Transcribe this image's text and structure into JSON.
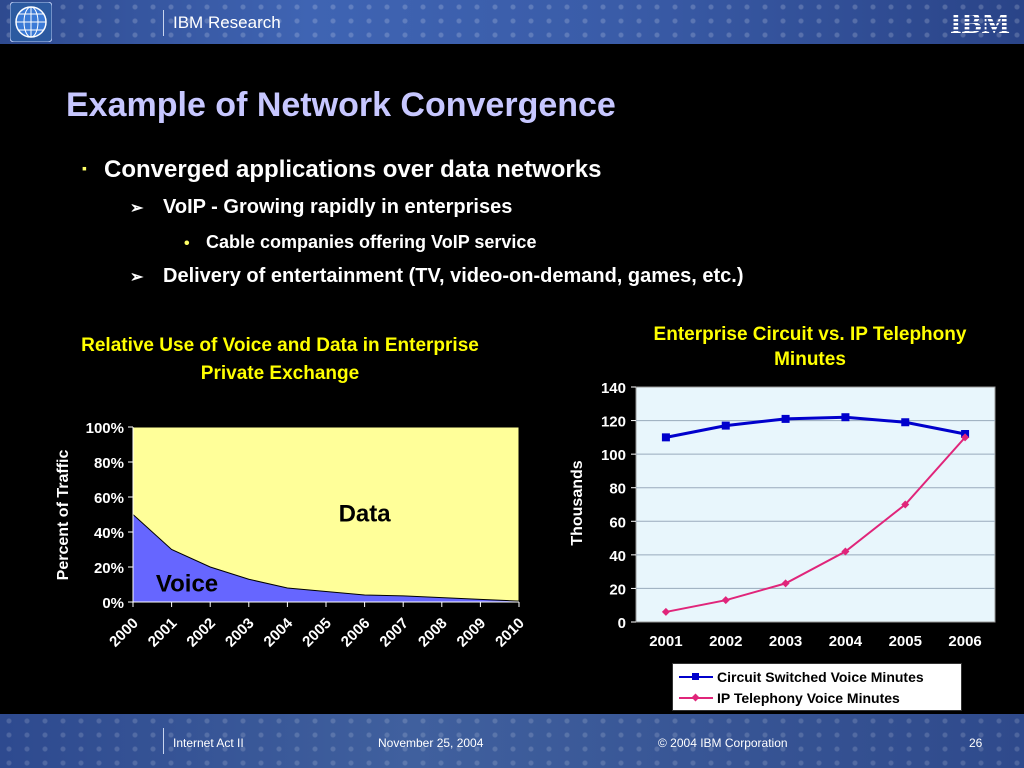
{
  "header": {
    "org": "IBM Research",
    "logo": "IBM"
  },
  "slide": {
    "title": "Example of Network Convergence",
    "bullets": [
      {
        "level": 1,
        "marker": "▪",
        "text": "Converged applications over data networks"
      },
      {
        "level": 2,
        "marker": "➢",
        "text": "VoIP - Growing rapidly in enterprises"
      },
      {
        "level": 3,
        "marker": "•",
        "text": "Cable companies offering VoIP service"
      },
      {
        "level": 2,
        "marker": "➢",
        "text": "Delivery of entertainment (TV, video-on-demand, games, etc.)"
      }
    ]
  },
  "chart_data": [
    {
      "type": "area",
      "title": "Relative Use of Voice and Data in Enterprise Private Exchange",
      "ylabel": "Percent of Traffic",
      "categories": [
        "2000",
        "2001",
        "2002",
        "2003",
        "2004",
        "2005",
        "2006",
        "2007",
        "2008",
        "2009",
        "2010"
      ],
      "yticks": [
        "0%",
        "20%",
        "40%",
        "60%",
        "80%",
        "100%"
      ],
      "ylim": [
        0,
        100
      ],
      "stacked": true,
      "series": [
        {
          "name": "Voice",
          "color": "#6666ff",
          "values": [
            50,
            30,
            20,
            13,
            8,
            6,
            4,
            3.5,
            2.5,
            1.5,
            0.5
          ]
        },
        {
          "name": "Data",
          "color": "#ffff99",
          "values": [
            50,
            70,
            80,
            87,
            92,
            94,
            96,
            96.5,
            97.5,
            98.5,
            99.5
          ]
        }
      ],
      "grid": false,
      "legend": "inline labels"
    },
    {
      "type": "line",
      "title": "Enterprise Circuit vs. IP Telephony Minutes",
      "ylabel": "Thousands",
      "categories": [
        "2001",
        "2002",
        "2003",
        "2004",
        "2005",
        "2006"
      ],
      "yticks": [
        "0",
        "20",
        "40",
        "60",
        "80",
        "100",
        "120",
        "140"
      ],
      "ylim": [
        0,
        140
      ],
      "series": [
        {
          "name": "Circuit Switched Voice Minutes",
          "color": "#0000cc",
          "marker": "square",
          "values": [
            110,
            117,
            121,
            122,
            119,
            112
          ]
        },
        {
          "name": "IP Telephony Voice Minutes",
          "color": "#e0257a",
          "marker": "diamond",
          "values": [
            6,
            13,
            23,
            42,
            70,
            110
          ]
        }
      ],
      "grid": true,
      "legend": "bottom"
    }
  ],
  "footer": {
    "event": "Internet Act II",
    "date": "November 25, 2004",
    "copyright": "© 2004 IBM Corporation",
    "page": "26"
  }
}
